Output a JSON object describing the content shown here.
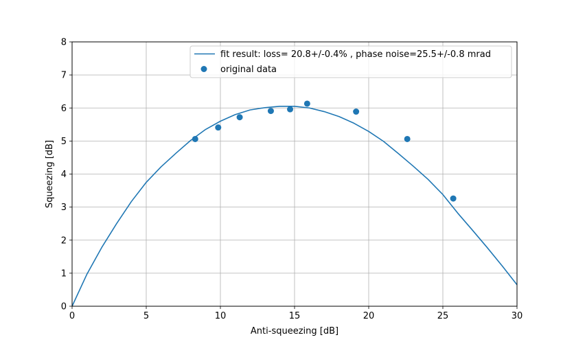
{
  "chart_data": {
    "type": "scatter",
    "title": "",
    "xlabel": "Anti-squeezing [dB]",
    "ylabel": "Squeezing [dB]",
    "xlim": [
      0,
      30
    ],
    "ylim": [
      0,
      8
    ],
    "xticks": [
      0,
      5,
      10,
      15,
      20,
      25,
      30
    ],
    "yticks": [
      0,
      1,
      2,
      3,
      4,
      5,
      6,
      7,
      8
    ],
    "grid": true,
    "legend_position": "top-right",
    "colors": {
      "series": "#1f77b4",
      "grid": "#b0b0b0"
    },
    "series": [
      {
        "name": "fit result: loss= 20.8+/-0.4% , phase noise=25.5+/-0.8 mrad",
        "type": "line",
        "x": [
          0,
          1,
          2,
          3,
          4,
          5,
          6,
          7,
          8,
          9,
          10,
          11,
          12,
          13,
          14,
          15,
          16,
          17,
          18,
          19,
          20,
          21,
          22,
          23,
          24,
          25,
          26,
          27,
          28,
          29,
          30
        ],
        "y": [
          0.0,
          0.97,
          1.78,
          2.5,
          3.17,
          3.75,
          4.22,
          4.63,
          5.02,
          5.35,
          5.6,
          5.8,
          5.94,
          6.01,
          6.05,
          6.05,
          6.0,
          5.89,
          5.74,
          5.54,
          5.29,
          4.99,
          4.62,
          4.24,
          3.84,
          3.38,
          2.82,
          2.3,
          1.77,
          1.22,
          0.65
        ]
      },
      {
        "name": "original data",
        "type": "scatter",
        "x": [
          8.3,
          9.85,
          11.3,
          13.4,
          14.7,
          15.85,
          19.15,
          22.6,
          25.7
        ],
        "y": [
          5.06,
          5.41,
          5.72,
          5.91,
          5.96,
          6.13,
          5.89,
          5.06,
          3.26
        ]
      }
    ]
  }
}
